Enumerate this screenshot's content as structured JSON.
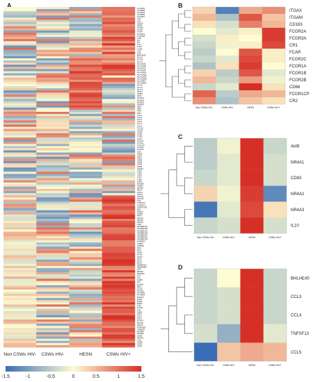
{
  "panels": {
    "A": {
      "letter": "A"
    },
    "B": {
      "letter": "B"
    },
    "C": {
      "letter": "C"
    },
    "D": {
      "letter": "D"
    }
  },
  "colors": {
    "low": "#3a6db5",
    "mid": "#fdfcd2",
    "high": "#d62f26"
  },
  "colorbar": {
    "ticks": [
      "-1.5",
      "-1",
      "-0.5",
      "0",
      "0.5",
      "1",
      "1.5"
    ]
  },
  "chart_data": [
    {
      "panel": "A",
      "type": "heatmap",
      "columns": [
        "Non CSWs HIV-",
        "CSWs HIV-",
        "HESN",
        "CSWs HIV+"
      ],
      "rows": [
        "FCGR3A",
        "FCGR3B",
        "FCGR2A",
        "FCGR2B",
        "FCGR2C",
        "CR1",
        "CR2",
        "CD163",
        "CD68",
        "ITGAM",
        "ITGAX",
        "FCAR",
        "FCGR1A",
        "FCGR1B",
        "IL1B",
        "IL6",
        "IL8",
        "IL10",
        "IL12A",
        "IL12B",
        "IL15",
        "IL18",
        "BHLHE40",
        "HLA-A",
        "HLA-B",
        "HLA-C",
        "HLA-DMA",
        "HLA-DMB",
        "HLA-DOA",
        "HLA-DOB",
        "HLA-DPA1",
        "HLA-DPB1",
        "HLA-DQA1",
        "HLA-DQB1",
        "HLA-DRA",
        "HLA-DRB1",
        "HLA-E",
        "HLA-F",
        "HLA-G",
        "IFNA1",
        "IFNB1",
        "IFNG",
        "IFNGR1",
        "IFNGR2",
        "IFNAR1",
        "IFNAR2",
        "IRF1",
        "IRF3",
        "IRF5",
        "IRF7",
        "CCL2",
        "CCL3",
        "CCL4",
        "CCL5",
        "CCL7",
        "CCL8",
        "CCL19",
        "CCL20",
        "CCR1",
        "CCR2",
        "CCR5",
        "CCR7",
        "CXCL8",
        "CXCL9",
        "CXCL10",
        "CXCR3",
        "CXCR4",
        "CD4",
        "CD8A",
        "CD14",
        "CD16",
        "CD40",
        "CD80",
        "CD83",
        "CD86",
        "CD209",
        "TLR2",
        "TLR3",
        "TLR4",
        "TLR7",
        "TLR8",
        "TLR9",
        "MYD88",
        "TRAF6",
        "NFKB1",
        "RELA",
        "STAT1",
        "STAT3",
        "SOCS1",
        "SOCS3",
        "TNF",
        "TNFSF10",
        "TNFSF13",
        "TNFSF13B",
        "FAS",
        "FASLG",
        "GZMB",
        "PRF1",
        "NR4A1",
        "NR4A2",
        "NR4A3",
        "AHR",
        "APOBEC3A",
        "APOBEC3B",
        "APOBEC3C",
        "APOBEC3D",
        "APOBEC3F",
        "APOBEC3G",
        "APOBEC3H",
        "SAMHD1",
        "TRIM5",
        "TRIM22",
        "MX1",
        "MX2",
        "OAS1",
        "OAS2",
        "ISG15",
        "IFIT1",
        "IFIT3",
        "BST2",
        "SERPINA1",
        "SERPINB9",
        "SLPI",
        "DEFB1",
        "DEFB4A",
        "LYZ",
        "LTF",
        "CAMP",
        "PI3",
        "ELANE",
        "MPO",
        "CTSG",
        "PTGS2",
        "PTGER2",
        "PTGER4",
        "HMOX1",
        "EGR1",
        "EGR2",
        "EGR3",
        "FOS",
        "FOSB",
        "JUN",
        "JUNB",
        "ATF3",
        "KLF2",
        "KLF4",
        "DUSP1",
        "DUSP2",
        "ZFP36",
        "ZC3H12A",
        "TNFAIP3",
        "NFKBIA",
        "NFKBIZ",
        "CD69",
        "VEGFA",
        "IL1A",
        "IL1RN",
        "CSF2",
        "CSF3"
      ],
      "colorbar": {
        "min": -1.5,
        "max": 1.5
      }
    },
    {
      "panel": "B",
      "type": "heatmap",
      "columns": [
        "Non CSWs HIV-",
        "CSWs HIV-",
        "HESN",
        "CSWs HIV+"
      ],
      "rows": [
        "ITGAX",
        "ITGAM",
        "CD163",
        "FCGR2A",
        "FCGR3A",
        "CR1",
        "FCAR",
        "FCGR2C",
        "FCGR1A",
        "FCGR1B",
        "FCGR2B",
        "CD68",
        "FCGR1CP",
        "CR2"
      ],
      "values": [
        [
          0.3,
          -1.3,
          0.6,
          0.8
        ],
        [
          0.5,
          -0.6,
          1.2,
          0.4
        ],
        [
          0.2,
          -0.3,
          0.9,
          0.5
        ],
        [
          0.0,
          -0.2,
          0.1,
          1.4
        ],
        [
          -0.3,
          0.1,
          0.0,
          1.4
        ],
        [
          -0.4,
          -0.1,
          0.1,
          1.3
        ],
        [
          -0.5,
          0.0,
          1.2,
          0.1
        ],
        [
          -0.4,
          -0.2,
          1.3,
          0.1
        ],
        [
          -0.6,
          0.2,
          1.4,
          0.0
        ],
        [
          0.3,
          -0.5,
          1.2,
          -0.2
        ],
        [
          0.5,
          -0.4,
          0.7,
          -0.1
        ],
        [
          -0.4,
          -0.2,
          1.5,
          0.2
        ],
        [
          1.1,
          -0.5,
          0.6,
          0.5
        ],
        [
          0.8,
          -0.6,
          0.4,
          0.2
        ]
      ]
    },
    {
      "panel": "C",
      "type": "heatmap",
      "columns": [
        "Non CSWs HIV-",
        "CSWs HIV-",
        "HESN",
        "CSWs HIV+"
      ],
      "rows": [
        "AHR",
        "NR4A1",
        "CD83",
        "NR4A2",
        "NR4A3",
        "IL10"
      ],
      "values": [
        [
          -0.5,
          -0.1,
          1.5,
          -0.4
        ],
        [
          -0.5,
          -0.2,
          1.5,
          -0.3
        ],
        [
          -0.4,
          -0.2,
          1.5,
          -0.3
        ],
        [
          0.3,
          -0.1,
          1.4,
          -1.2
        ],
        [
          -1.4,
          -0.2,
          1.3,
          0.2
        ],
        [
          -0.4,
          -0.3,
          1.5,
          -0.3
        ]
      ]
    },
    {
      "panel": "D",
      "type": "heatmap",
      "columns": [
        "Non CSWs HIV-",
        "CSWs HIV-",
        "HESN",
        "CSWs HIV+"
      ],
      "rows": [
        "BHLHE40",
        "CCL3",
        "CCL4",
        "TNFSF13",
        "CCL5"
      ],
      "values": [
        [
          -0.4,
          0.0,
          1.5,
          -0.4
        ],
        [
          -0.4,
          -0.3,
          1.5,
          -0.4
        ],
        [
          -0.4,
          -0.3,
          1.5,
          -0.4
        ],
        [
          -0.3,
          -0.8,
          1.5,
          -0.2
        ],
        [
          -1.5,
          0.4,
          0.6,
          0.5
        ]
      ]
    }
  ]
}
